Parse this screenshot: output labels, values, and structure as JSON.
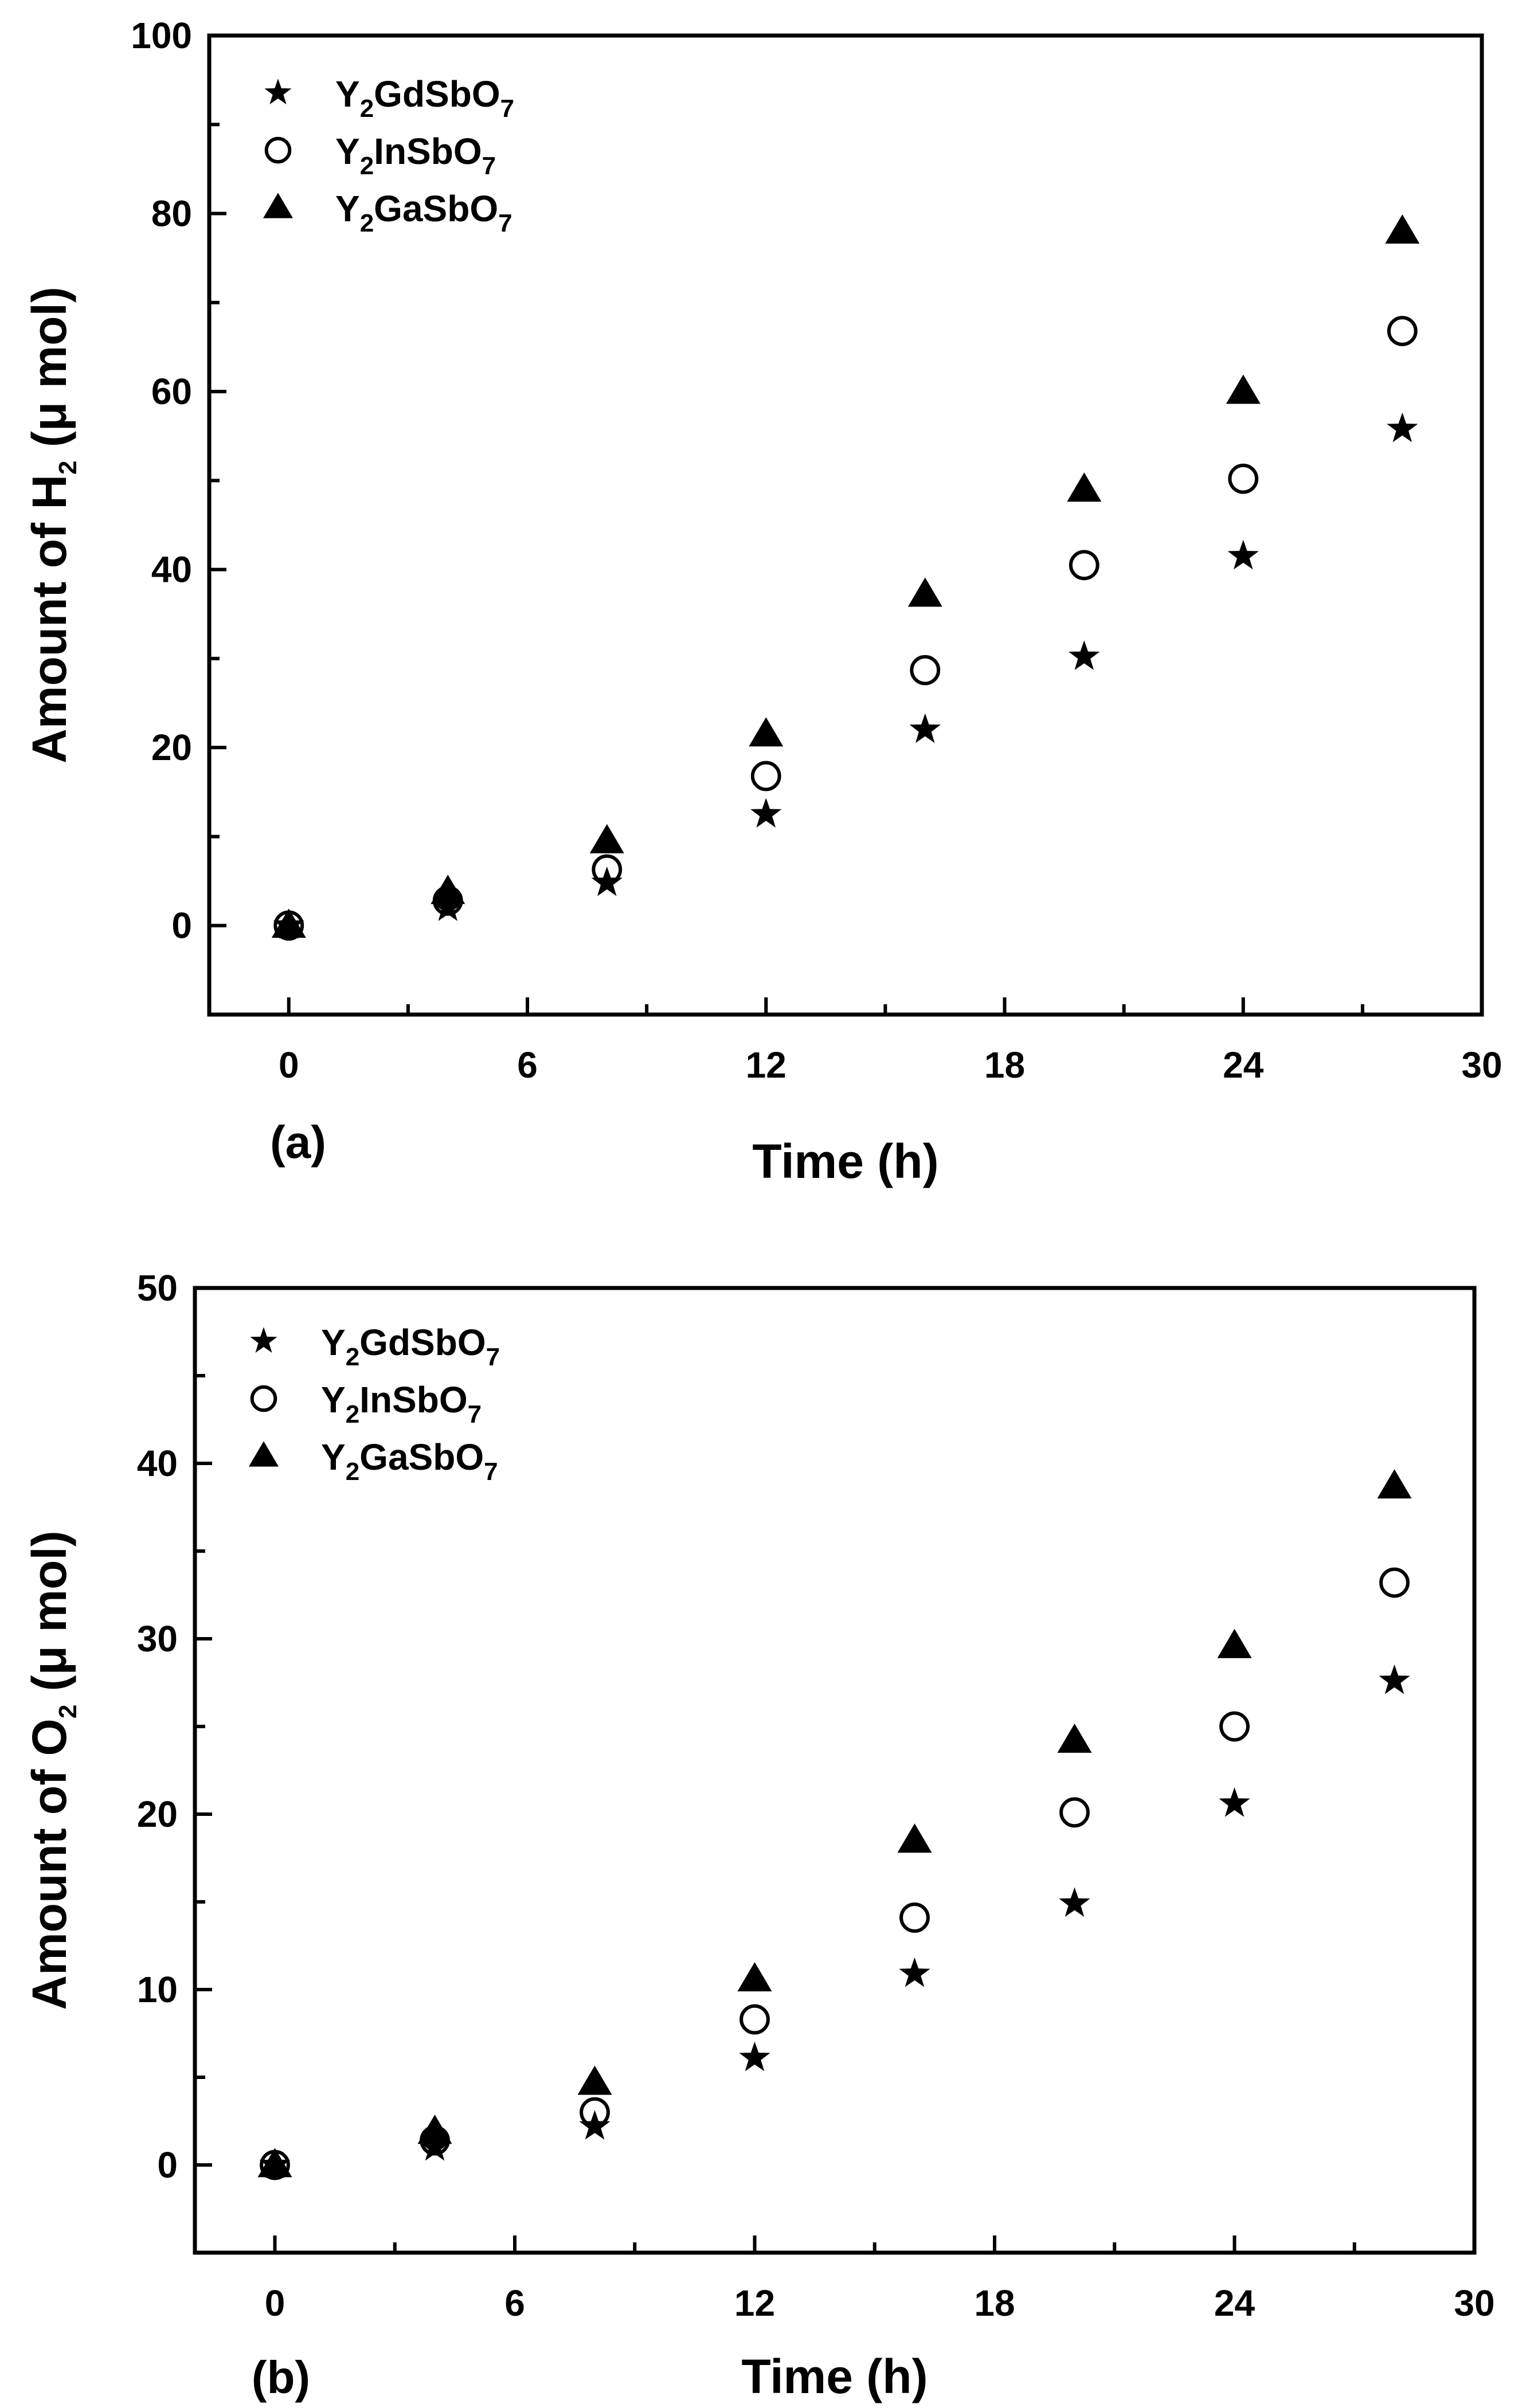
{
  "colors": {
    "axis": "#000000",
    "marker": "#000000",
    "background": "#ffffff"
  },
  "chart_data": [
    {
      "type": "scatter",
      "panel_label": "(a)",
      "xlabel": "Time (h)",
      "ylabel": {
        "prefix": "Amount of H",
        "sub": "2",
        "suffix": " (μ mol)"
      },
      "xlim": [
        -2,
        30
      ],
      "ylim": [
        -10,
        100
      ],
      "xticks": [
        0,
        6,
        12,
        18,
        24,
        30
      ],
      "yticks": [
        0,
        20,
        40,
        60,
        80,
        100
      ],
      "legend_position": "top-left",
      "series": [
        {
          "name": "Y2GdSbO7",
          "label_parts": [
            "Y",
            "2",
            "GdSbO",
            "7"
          ],
          "marker": "star",
          "x": [
            0,
            4,
            8,
            12,
            16,
            20,
            24,
            28
          ],
          "y": [
            0,
            2,
            4.8,
            12.5,
            22,
            30.2,
            41.5,
            55.8
          ]
        },
        {
          "name": "Y2InSbO7",
          "label_parts": [
            "Y",
            "2",
            "InSbO",
            "7"
          ],
          "marker": "circle-open",
          "x": [
            0,
            4,
            8,
            12,
            16,
            20,
            24,
            28
          ],
          "y": [
            0,
            2.8,
            6.3,
            16.8,
            28.7,
            40.5,
            50.2,
            66.8
          ]
        },
        {
          "name": "Y2GaSbO7",
          "label_parts": [
            "Y",
            "2",
            "GaSbO",
            "7"
          ],
          "marker": "triangle",
          "x": [
            0,
            4,
            8,
            12,
            16,
            20,
            24,
            28
          ],
          "y": [
            0,
            3.8,
            9.5,
            21.5,
            37.2,
            49,
            60,
            78
          ]
        }
      ]
    },
    {
      "type": "scatter",
      "panel_label": "(b)",
      "xlabel": "Time (h)",
      "ylabel": {
        "prefix": "Amount of O",
        "sub": "2",
        "suffix": " (μ mol)"
      },
      "xlim": [
        -2,
        30
      ],
      "ylim": [
        -5,
        50
      ],
      "xticks": [
        0,
        6,
        12,
        18,
        24,
        30
      ],
      "yticks": [
        0,
        10,
        20,
        30,
        40,
        50
      ],
      "legend_position": "top-left",
      "series": [
        {
          "name": "Y2GdSbO7",
          "label_parts": [
            "Y",
            "2",
            "GdSbO",
            "7"
          ],
          "marker": "star",
          "x": [
            0,
            4,
            8,
            12,
            16,
            20,
            24,
            28
          ],
          "y": [
            0,
            1,
            2.2,
            6.1,
            10.9,
            14.9,
            20.6,
            27.6
          ]
        },
        {
          "name": "Y2InSbO7",
          "label_parts": [
            "Y",
            "2",
            "InSbO",
            "7"
          ],
          "marker": "circle-open",
          "x": [
            0,
            4,
            8,
            12,
            16,
            20,
            24,
            28
          ],
          "y": [
            0,
            1.4,
            3,
            8.3,
            14.1,
            20.1,
            25,
            33.2
          ]
        },
        {
          "name": "Y2GaSbO7",
          "label_parts": [
            "Y",
            "2",
            "GaSbO",
            "7"
          ],
          "marker": "triangle",
          "x": [
            0,
            4,
            8,
            12,
            16,
            20,
            24,
            28
          ],
          "y": [
            0,
            1.9,
            4.7,
            10.6,
            18.5,
            24.2,
            29.6,
            38.7
          ]
        }
      ]
    }
  ]
}
